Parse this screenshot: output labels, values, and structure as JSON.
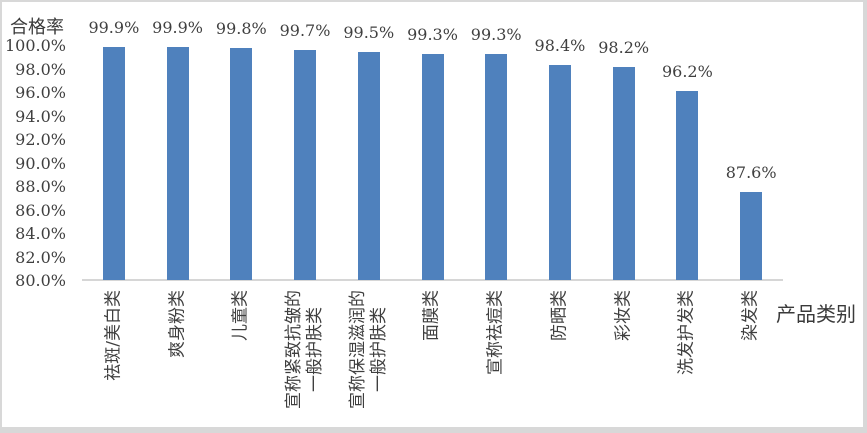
{
  "frame": {
    "background": "#FFFFFF",
    "border_color": "#D8D8D8"
  },
  "chart_data": {
    "type": "bar",
    "title": "",
    "ylabel": "合格率",
    "xlabel": "产品类别",
    "categories": [
      "祛斑/美白类",
      "爽身粉类",
      "儿童类",
      "宣称紧致抗皱的\n一般护肤类",
      "宣称保湿滋润的\n一般护肤类",
      "面膜类",
      "宣称祛痘类",
      "防晒类",
      "彩妆类",
      "洗发护发类",
      "染发类"
    ],
    "values": [
      99.9,
      99.9,
      99.8,
      99.7,
      99.5,
      99.3,
      99.3,
      98.4,
      98.2,
      96.2,
      87.6
    ],
    "data_labels": [
      "99.9%",
      "99.9%",
      "99.8%",
      "99.7%",
      "99.5%",
      "99.3%",
      "99.3%",
      "98.4%",
      "98.2%",
      "96.2%",
      "87.6%"
    ],
    "y_ticks": [
      "100.0%",
      "98.0%",
      "96.0%",
      "94.0%",
      "92.0%",
      "90.0%",
      "88.0%",
      "86.0%",
      "84.0%",
      "82.0%",
      "80.0%"
    ],
    "ylim": [
      80,
      100
    ],
    "y_tick_step": 2,
    "grid": false,
    "legend": false,
    "bar_color": "#4F81BD",
    "axis_line_color": "#D6D6D6",
    "text_color": "#3F3F3F",
    "x_label_rotation": -90,
    "data_label_position": "above-bar"
  }
}
